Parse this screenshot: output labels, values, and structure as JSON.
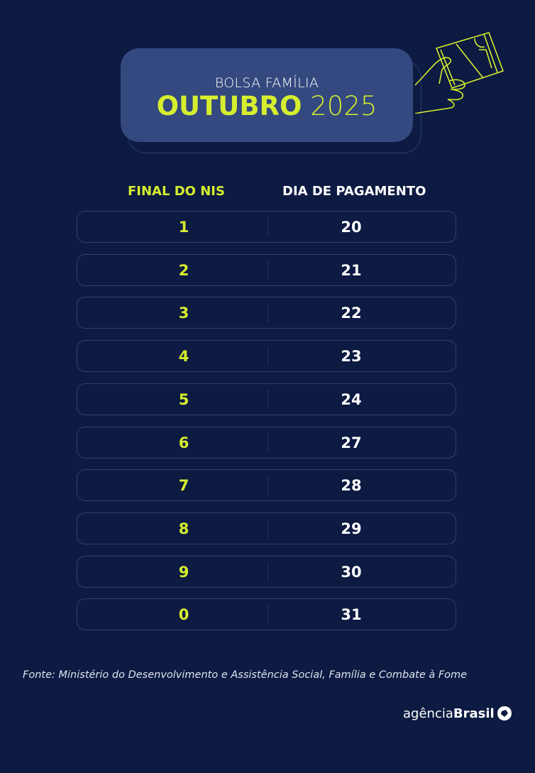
{
  "header": {
    "subtitle": "BOLSA FAMÍLIA",
    "month": "OUTUBRO",
    "year": "2025"
  },
  "table": {
    "columns": [
      "FINAL DO NIS",
      "DIA DE PAGAMENTO"
    ],
    "rows": [
      {
        "nis": "1",
        "day": "20"
      },
      {
        "nis": "2",
        "day": "21"
      },
      {
        "nis": "3",
        "day": "22"
      },
      {
        "nis": "4",
        "day": "23"
      },
      {
        "nis": "5",
        "day": "24"
      },
      {
        "nis": "6",
        "day": "27"
      },
      {
        "nis": "7",
        "day": "28"
      },
      {
        "nis": "8",
        "day": "29"
      },
      {
        "nis": "9",
        "day": "30"
      },
      {
        "nis": "0",
        "day": "31"
      }
    ]
  },
  "source": "Fonte: Ministério do Desenvolvimento e Assistência Social, Família e Combate à Fome",
  "logo": {
    "light": "agência",
    "bold": "Brasil"
  },
  "colors": {
    "background": "#0d1a42",
    "banner": "#33497f",
    "accent": "#d6ee2e"
  },
  "icons": {
    "illustration": "hand-holding-card-icon",
    "logo": "agencia-brasil-logo-icon"
  }
}
